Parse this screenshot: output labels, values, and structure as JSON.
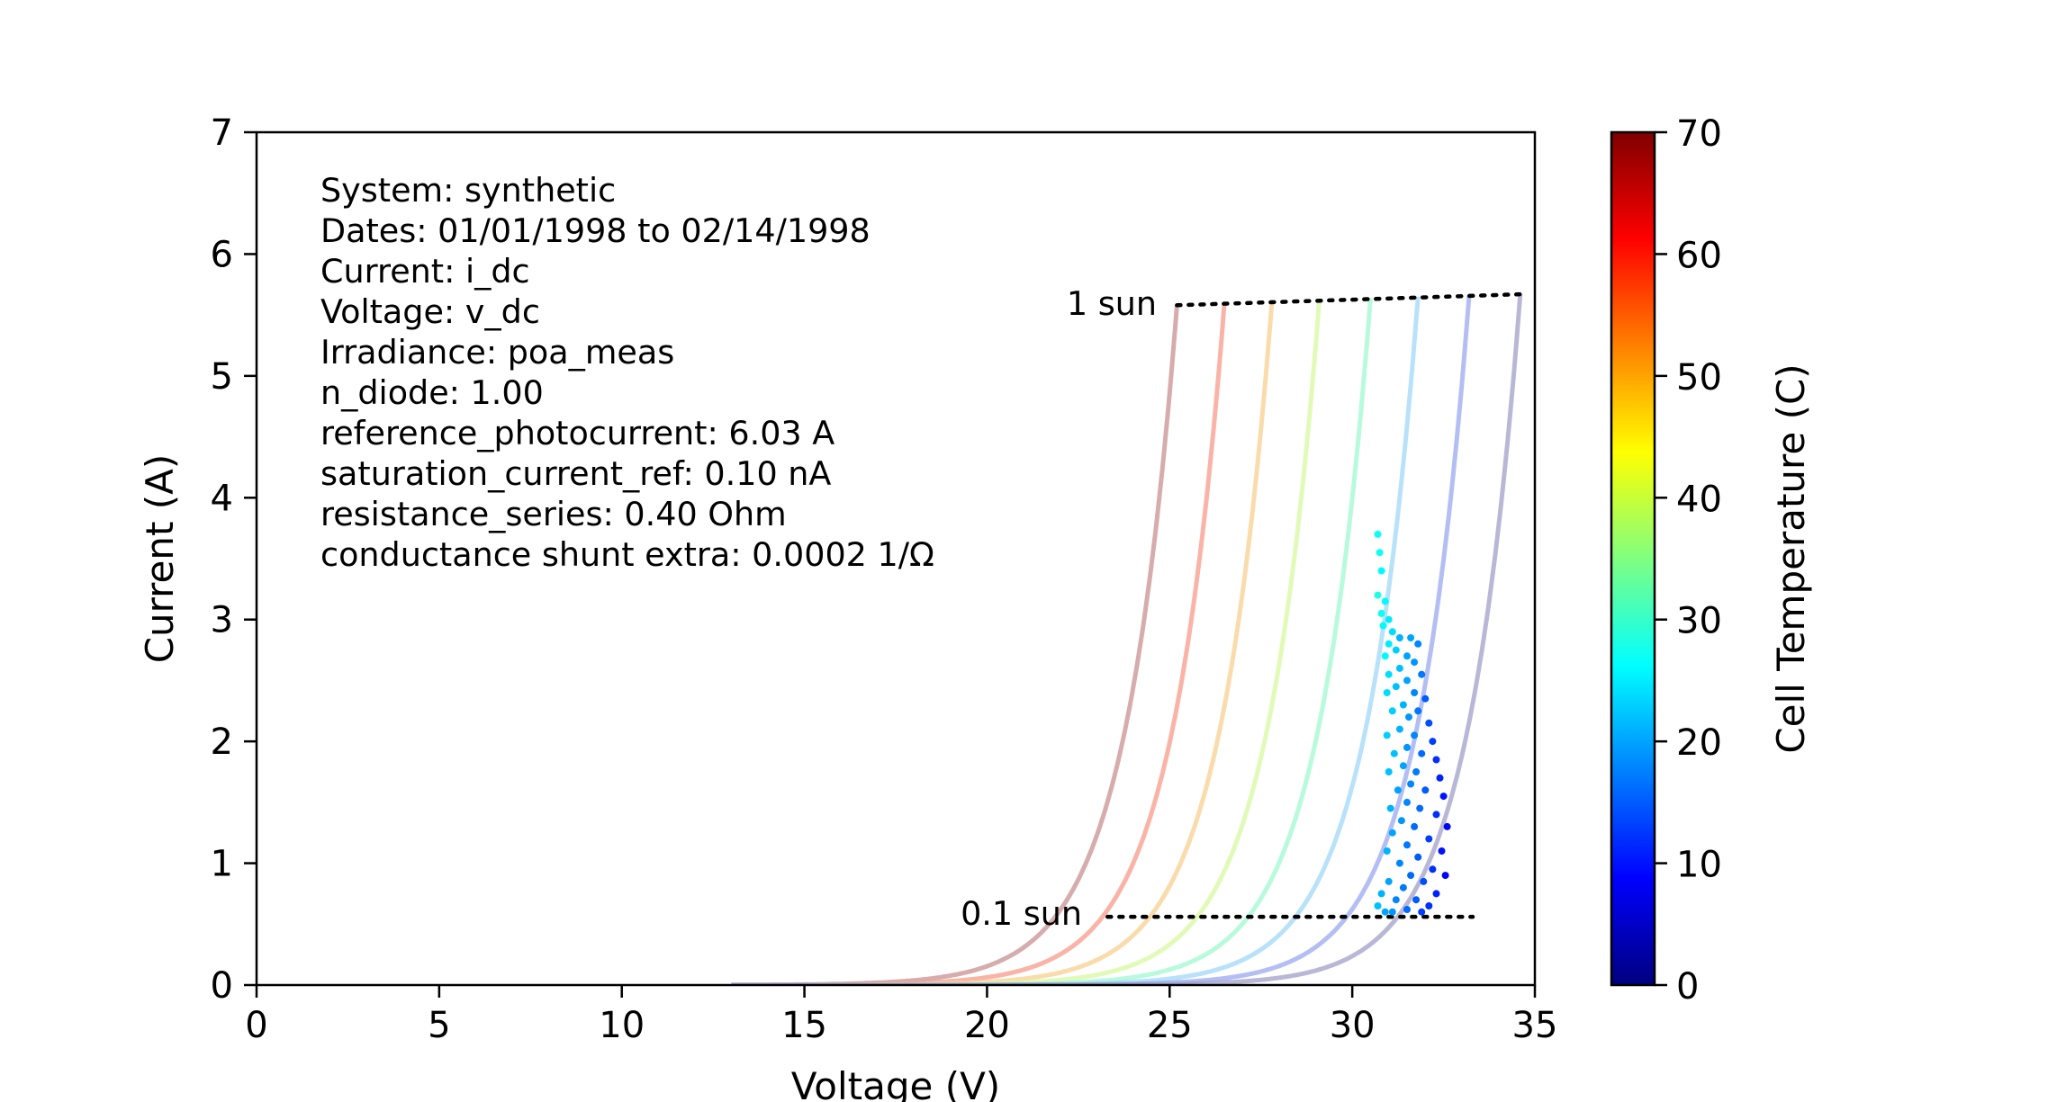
{
  "chart_data": {
    "type": "scatter",
    "xlabel": "Voltage (V)",
    "ylabel": "Current (A)",
    "xlim": [
      0,
      35
    ],
    "ylim": [
      0,
      7
    ],
    "x_ticks": [
      0,
      5,
      10,
      15,
      20,
      25,
      30,
      35
    ],
    "y_ticks": [
      0,
      1,
      2,
      3,
      4,
      5,
      6,
      7
    ],
    "grid": false,
    "info_lines": [
      "System: synthetic",
      "Dates: 01/01/1998 to 02/14/1998",
      "Current: i_dc",
      "Voltage: v_dc",
      "Irradiance: poa_meas",
      "n_diode: 1.00",
      "reference_photocurrent: 6.03 A",
      "saturation_current_ref: 0.10 nA",
      "resistance_series: 0.40 Ohm",
      "conductance shunt extra: 0.0002 1/Ω"
    ],
    "annotations": {
      "one_sun": {
        "label": "1 sun",
        "line": [
          [
            25.2,
            5.58
          ],
          [
            34.6,
            5.67
          ]
        ]
      },
      "tenth_sun": {
        "label": "0.1 sun",
        "line": [
          [
            23.3,
            0.56
          ],
          [
            33.3,
            0.56
          ]
        ]
      }
    },
    "model_curves": [
      {
        "temperature": 70,
        "color": "#c89090",
        "voc": 25.2,
        "isc": 5.58,
        "voc_low": 23.3,
        "isc_low": 0.56
      },
      {
        "temperature": 60,
        "color": "#f89a8a",
        "voc": 26.5,
        "isc": 5.6,
        "voc_low": 24.8,
        "isc_low": 0.56
      },
      {
        "temperature": 50,
        "color": "#f8d090",
        "voc": 27.8,
        "isc": 5.61,
        "voc_low": 26.2,
        "isc_low": 0.56
      },
      {
        "temperature": 40,
        "color": "#d8f8a0",
        "voc": 29.1,
        "isc": 5.63,
        "voc_low": 27.6,
        "isc_low": 0.56
      },
      {
        "temperature": 30,
        "color": "#a0f8d0",
        "voc": 30.5,
        "isc": 5.64,
        "voc_low": 29.0,
        "isc_low": 0.56
      },
      {
        "temperature": 20,
        "color": "#a0d8f8",
        "voc": 31.8,
        "isc": 5.65,
        "voc_low": 30.5,
        "isc_low": 0.56
      },
      {
        "temperature": 10,
        "color": "#9aa8f0",
        "voc": 33.2,
        "isc": 5.66,
        "voc_low": 31.9,
        "isc_low": 0.56
      },
      {
        "temperature": 0,
        "color": "#a0a0c8",
        "voc": 34.6,
        "isc": 5.67,
        "voc_low": 33.3,
        "isc_low": 0.56
      }
    ],
    "scatter_points": [
      [
        30.7,
        3.7,
        27
      ],
      [
        30.75,
        3.55,
        27
      ],
      [
        30.8,
        3.4,
        26
      ],
      [
        30.7,
        3.2,
        28
      ],
      [
        30.9,
        3.15,
        26
      ],
      [
        30.8,
        3.05,
        27
      ],
      [
        31.0,
        3.0,
        25
      ],
      [
        30.85,
        2.95,
        26
      ],
      [
        31.1,
        2.9,
        24
      ],
      [
        31.3,
        2.85,
        21
      ],
      [
        31.6,
        2.85,
        20
      ],
      [
        31.8,
        2.8,
        18
      ],
      [
        31.0,
        2.8,
        25
      ],
      [
        31.2,
        2.75,
        23
      ],
      [
        31.5,
        2.7,
        20
      ],
      [
        30.9,
        2.7,
        26
      ],
      [
        31.7,
        2.65,
        19
      ],
      [
        31.3,
        2.6,
        22
      ],
      [
        31.0,
        2.55,
        24
      ],
      [
        31.9,
        2.55,
        17
      ],
      [
        31.5,
        2.5,
        20
      ],
      [
        31.2,
        2.45,
        22
      ],
      [
        30.95,
        2.4,
        24
      ],
      [
        31.7,
        2.4,
        18
      ],
      [
        32.0,
        2.35,
        15
      ],
      [
        31.4,
        2.3,
        21
      ],
      [
        31.1,
        2.25,
        23
      ],
      [
        31.8,
        2.25,
        17
      ],
      [
        31.55,
        2.2,
        19
      ],
      [
        32.1,
        2.15,
        14
      ],
      [
        31.3,
        2.1,
        21
      ],
      [
        30.95,
        2.05,
        23
      ],
      [
        31.7,
        2.05,
        18
      ],
      [
        32.2,
        2.0,
        13
      ],
      [
        31.5,
        1.95,
        19
      ],
      [
        31.15,
        1.9,
        22
      ],
      [
        31.9,
        1.9,
        16
      ],
      [
        32.3,
        1.85,
        12
      ],
      [
        31.4,
        1.8,
        20
      ],
      [
        31.0,
        1.75,
        22
      ],
      [
        31.75,
        1.75,
        17
      ],
      [
        32.4,
        1.7,
        11
      ],
      [
        31.6,
        1.65,
        18
      ],
      [
        31.25,
        1.6,
        20
      ],
      [
        32.0,
        1.6,
        15
      ],
      [
        32.5,
        1.55,
        10
      ],
      [
        31.5,
        1.5,
        18
      ],
      [
        31.05,
        1.45,
        21
      ],
      [
        31.85,
        1.45,
        16
      ],
      [
        32.3,
        1.4,
        12
      ],
      [
        31.35,
        1.35,
        19
      ],
      [
        32.6,
        1.3,
        9
      ],
      [
        31.7,
        1.3,
        16
      ],
      [
        31.1,
        1.25,
        20
      ],
      [
        32.1,
        1.2,
        13
      ],
      [
        31.5,
        1.15,
        17
      ],
      [
        32.45,
        1.1,
        10
      ],
      [
        30.95,
        1.1,
        21
      ],
      [
        31.8,
        1.05,
        15
      ],
      [
        31.3,
        1.0,
        18
      ],
      [
        32.2,
        0.95,
        12
      ],
      [
        32.55,
        0.9,
        9
      ],
      [
        31.6,
        0.9,
        16
      ],
      [
        31.0,
        0.85,
        20
      ],
      [
        31.95,
        0.85,
        14
      ],
      [
        31.4,
        0.8,
        17
      ],
      [
        32.3,
        0.75,
        11
      ],
      [
        30.8,
        0.75,
        21
      ],
      [
        31.75,
        0.7,
        15
      ],
      [
        31.2,
        0.7,
        18
      ],
      [
        32.1,
        0.65,
        12
      ],
      [
        30.7,
        0.65,
        22
      ],
      [
        31.5,
        0.62,
        16
      ],
      [
        31.9,
        0.6,
        13
      ],
      [
        31.1,
        0.6,
        19
      ],
      [
        30.9,
        0.6,
        20
      ]
    ],
    "colorbar": {
      "label": "Cell Temperature (C)",
      "range": [
        0,
        70
      ],
      "ticks": [
        0,
        10,
        20,
        30,
        40,
        50,
        60,
        70
      ],
      "colormap": "jet"
    }
  }
}
